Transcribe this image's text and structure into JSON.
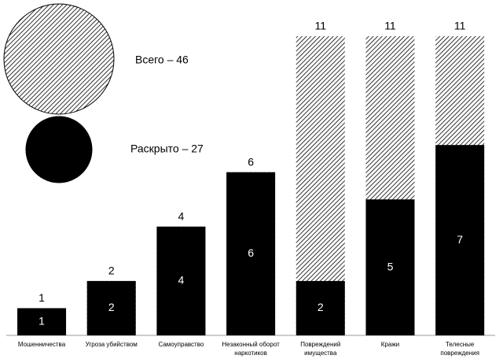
{
  "chart_data": {
    "type": "overlap-bar",
    "categories": [
      "Мошенничества",
      "Угроза убийством",
      "Самоуправство",
      "Незаконный оборот наркотиков",
      "Повреждений имущества",
      "Кражи",
      "Телесные повреждения"
    ],
    "series": [
      {
        "name": "Всего – 46",
        "color": "#000000",
        "hatch": true,
        "values": [
          1,
          2,
          4,
          6,
          11,
          11,
          11
        ]
      },
      {
        "name": "Раскрыто – 27",
        "color": "#000000",
        "hatch": false,
        "values": [
          1,
          2,
          4,
          6,
          2,
          5,
          7
        ]
      }
    ],
    "ylim": [
      0,
      11
    ]
  }
}
